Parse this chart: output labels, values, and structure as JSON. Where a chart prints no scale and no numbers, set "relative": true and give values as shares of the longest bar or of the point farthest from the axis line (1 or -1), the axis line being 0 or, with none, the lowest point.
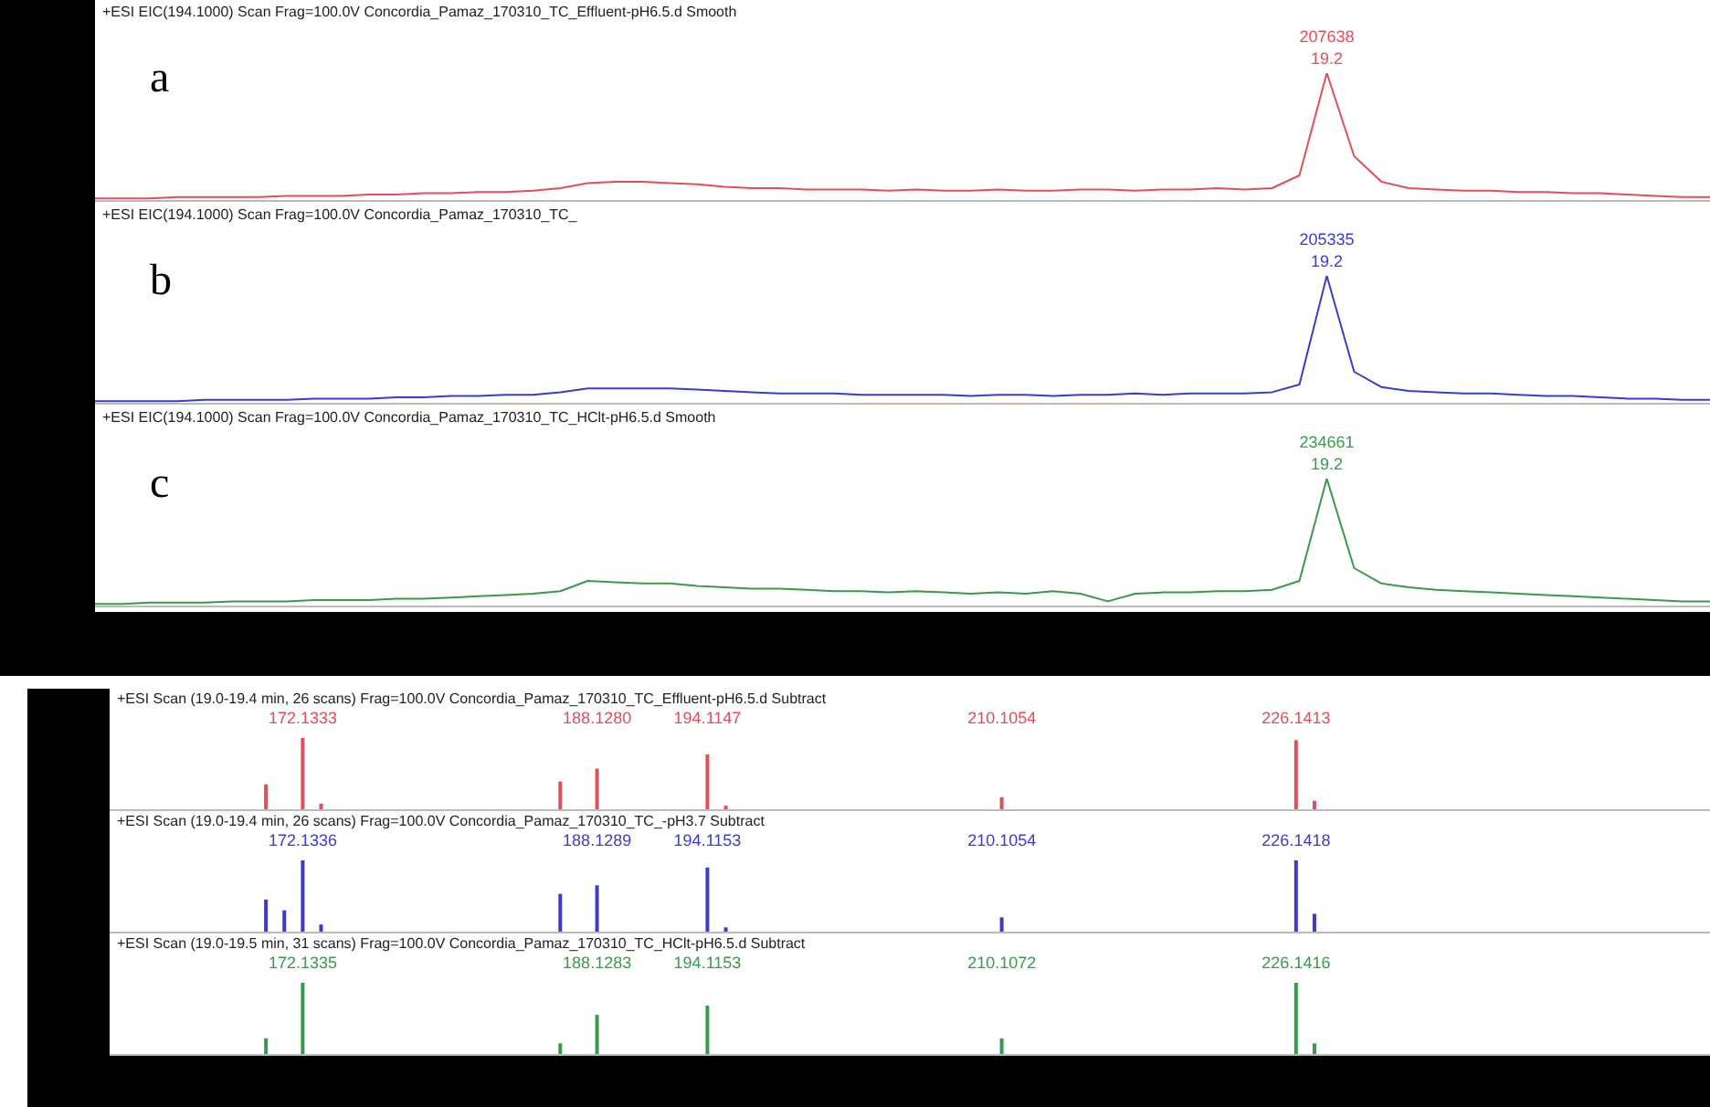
{
  "chart_data": [
    {
      "type": "line",
      "title": "+ESI EIC(194.1000) Scan Frag=100.0V Concordia_Pamaz_170310_TC_Effluent-pH6.5.d  Smooth",
      "relative": true,
      "tick_labels": false,
      "color": "#e0505a",
      "categories": [
        null,
        null,
        null,
        null,
        null,
        null,
        null,
        null,
        null,
        null,
        null,
        null,
        null,
        null,
        null,
        null,
        null,
        null,
        null,
        null,
        null,
        null,
        null,
        null,
        null,
        null,
        null,
        null,
        null,
        null,
        null,
        null,
        null,
        null,
        null,
        null,
        null,
        null,
        null,
        null,
        null,
        null,
        null,
        null,
        null,
        null,
        null,
        null,
        null,
        null,
        null,
        null,
        null,
        null,
        null,
        null,
        null,
        null,
        null,
        null
      ],
      "values": [
        0.02,
        0.02,
        0.02,
        0.03,
        0.03,
        0.03,
        0.03,
        0.04,
        0.04,
        0.04,
        0.05,
        0.05,
        0.06,
        0.06,
        0.07,
        0.07,
        0.08,
        0.1,
        0.14,
        0.15,
        0.15,
        0.14,
        0.13,
        0.11,
        0.1,
        0.1,
        0.09,
        0.09,
        0.09,
        0.08,
        0.09,
        0.08,
        0.08,
        0.09,
        0.08,
        0.08,
        0.09,
        0.09,
        0.08,
        0.09,
        0.09,
        0.1,
        0.09,
        0.1,
        0.2,
        1,
        0.35,
        0.15,
        0.1,
        0.09,
        0.08,
        0.08,
        0.07,
        0.07,
        0.06,
        0.06,
        0.05,
        0.04,
        0.03,
        0.03
      ],
      "annotations": [
        "a",
        {
          "text": "207638",
          "y": 1
        },
        {
          "text": "19.2",
          "y": 1
        }
      ]
    },
    {
      "type": "line",
      "title": "+ESI EIC(194.1000) Scan Frag=100.0V Concordia_Pamaz_170310_TC_",
      "relative": true,
      "tick_labels": false,
      "color": "#3c3cc8",
      "categories": [
        null,
        null,
        null,
        null,
        null,
        null,
        null,
        null,
        null,
        null,
        null,
        null,
        null,
        null,
        null,
        null,
        null,
        null,
        null,
        null,
        null,
        null,
        null,
        null,
        null,
        null,
        null,
        null,
        null,
        null,
        null,
        null,
        null,
        null,
        null,
        null,
        null,
        null,
        null,
        null,
        null,
        null,
        null,
        null,
        null,
        null,
        null,
        null,
        null,
        null,
        null,
        null,
        null,
        null,
        null,
        null,
        null,
        null,
        null,
        null
      ],
      "values": [
        0.02,
        0.02,
        0.02,
        0.02,
        0.03,
        0.03,
        0.03,
        0.03,
        0.04,
        0.04,
        0.04,
        0.05,
        0.05,
        0.06,
        0.06,
        0.07,
        0.07,
        0.09,
        0.12,
        0.12,
        0.12,
        0.12,
        0.11,
        0.1,
        0.09,
        0.08,
        0.08,
        0.08,
        0.07,
        0.07,
        0.07,
        0.07,
        0.06,
        0.07,
        0.07,
        0.06,
        0.07,
        0.07,
        0.08,
        0.07,
        0.08,
        0.08,
        0.08,
        0.09,
        0.15,
        1,
        0.25,
        0.13,
        0.1,
        0.09,
        0.08,
        0.08,
        0.07,
        0.06,
        0.06,
        0.05,
        0.04,
        0.04,
        0.03,
        0.03
      ],
      "annotations": [
        "b",
        {
          "text": "205335",
          "y": 1
        },
        {
          "text": "19.2",
          "y": 1
        }
      ]
    },
    {
      "type": "line",
      "title": "+ESI EIC(194.1000) Scan Frag=100.0V Concordia_Pamaz_170310_TC_HClt-pH6.5.d  Smooth",
      "relative": true,
      "tick_labels": false,
      "color": "#3a9a4c",
      "categories": [
        null,
        null,
        null,
        null,
        null,
        null,
        null,
        null,
        null,
        null,
        null,
        null,
        null,
        null,
        null,
        null,
        null,
        null,
        null,
        null,
        null,
        null,
        null,
        null,
        null,
        null,
        null,
        null,
        null,
        null,
        null,
        null,
        null,
        null,
        null,
        null,
        null,
        null,
        null,
        null,
        null,
        null,
        null,
        null,
        null,
        null,
        null,
        null,
        null,
        null,
        null,
        null,
        null,
        null,
        null,
        null,
        null,
        null,
        null,
        null
      ],
      "values": [
        0.02,
        0.02,
        0.03,
        0.03,
        0.03,
        0.04,
        0.04,
        0.04,
        0.05,
        0.05,
        0.05,
        0.06,
        0.06,
        0.07,
        0.08,
        0.09,
        0.1,
        0.12,
        0.2,
        0.19,
        0.18,
        0.18,
        0.16,
        0.15,
        0.14,
        0.14,
        0.13,
        0.12,
        0.12,
        0.11,
        0.12,
        0.11,
        0.1,
        0.11,
        0.1,
        0.12,
        0.1,
        0.04,
        0.1,
        0.11,
        0.11,
        0.12,
        0.12,
        0.13,
        0.2,
        1,
        0.3,
        0.18,
        0.15,
        0.13,
        0.12,
        0.11,
        0.1,
        0.09,
        0.08,
        0.07,
        0.06,
        0.05,
        0.04,
        0.04
      ],
      "annotations": [
        "c",
        {
          "text": "234661",
          "y": 1
        },
        {
          "text": "19.2",
          "y": 1
        }
      ]
    },
    {
      "type": "bar",
      "title": "+ESI Scan (19.0-19.4 min, 26 scans) Frag=100.0V Concordia_Pamaz_170310_TC_Effluent-pH6.5.d  Subtract",
      "relative": true,
      "tick_labels": "x",
      "color": "#e0505a",
      "categories": [
        null,
        null,
        null,
        null,
        null,
        null,
        null,
        null,
        null,
        null,
        "172.1333",
        null,
        null,
        null,
        null,
        null,
        null,
        null,
        null,
        null,
        null,
        null,
        null,
        null,
        null,
        null,
        "188.1280",
        null,
        null,
        null,
        null,
        null,
        "194.1147",
        null,
        null,
        null,
        null,
        null,
        null,
        null,
        null,
        null,
        null,
        null,
        null,
        null,
        null,
        null,
        "210.1054",
        null,
        null,
        null,
        null,
        null,
        null,
        null,
        null,
        null,
        null,
        null,
        null,
        null,
        null,
        null,
        "226.1413",
        null,
        null,
        null,
        null,
        null,
        null,
        null,
        null,
        null,
        null,
        null,
        null,
        null,
        null,
        null,
        null,
        null,
        null,
        null,
        null,
        null,
        null
      ],
      "values": [
        null,
        null,
        null,
        null,
        null,
        null,
        null,
        null,
        0.35,
        null,
        1,
        0.08,
        null,
        null,
        null,
        null,
        null,
        null,
        null,
        null,
        null,
        null,
        null,
        null,
        0.39,
        null,
        0.57,
        null,
        null,
        null,
        null,
        null,
        0.77,
        0.05,
        null,
        null,
        null,
        null,
        null,
        null,
        null,
        null,
        null,
        null,
        null,
        null,
        null,
        null,
        0.17,
        null,
        null,
        null,
        null,
        null,
        null,
        null,
        null,
        null,
        null,
        null,
        null,
        null,
        null,
        null,
        0.97,
        0.12,
        null,
        null,
        null,
        null,
        null,
        null,
        null,
        null,
        null,
        null,
        null,
        null,
        null,
        null,
        null,
        null,
        null,
        null,
        null,
        null,
        null
      ]
    },
    {
      "type": "bar",
      "title": "+ESI Scan (19.0-19.4 min, 26 scans) Frag=100.0V Concordia_Pamaz_170310_TC_-pH3.7  Subtract",
      "relative": true,
      "tick_labels": "x",
      "color": "#3c3cc8",
      "categories": [
        null,
        null,
        null,
        null,
        null,
        null,
        null,
        null,
        null,
        null,
        "172.1336",
        null,
        null,
        null,
        null,
        null,
        null,
        null,
        null,
        null,
        null,
        null,
        null,
        null,
        null,
        null,
        "188.1289",
        null,
        null,
        null,
        null,
        null,
        "194.1153",
        null,
        null,
        null,
        null,
        null,
        null,
        null,
        null,
        null,
        null,
        null,
        null,
        null,
        null,
        null,
        "210.1054",
        null,
        null,
        null,
        null,
        null,
        null,
        null,
        null,
        null,
        null,
        null,
        null,
        null,
        null,
        null,
        "226.1418",
        null,
        null,
        null,
        null,
        null,
        null,
        null,
        null,
        null,
        null,
        null,
        null,
        null,
        null,
        null,
        null,
        null,
        null,
        null,
        null,
        null,
        null
      ],
      "values": [
        null,
        null,
        null,
        null,
        null,
        null,
        null,
        null,
        0.45,
        0.3,
        1,
        0.1,
        null,
        null,
        null,
        null,
        null,
        null,
        null,
        null,
        null,
        null,
        null,
        null,
        0.53,
        null,
        0.65,
        null,
        null,
        null,
        null,
        null,
        0.9,
        0.06,
        null,
        null,
        null,
        null,
        null,
        null,
        null,
        null,
        null,
        null,
        null,
        null,
        null,
        null,
        0.2,
        null,
        null,
        null,
        null,
        null,
        null,
        null,
        null,
        null,
        null,
        null,
        null,
        null,
        null,
        null,
        1,
        0.25,
        null,
        null,
        null,
        null,
        null,
        null,
        null,
        null,
        null,
        null,
        null,
        null,
        null,
        null,
        null,
        null,
        null,
        null,
        null,
        null,
        null
      ]
    },
    {
      "type": "bar",
      "title": "+ESI Scan (19.0-19.5 min, 31 scans) Frag=100.0V Concordia_Pamaz_170310_TC_HClt-pH6.5.d  Subtract",
      "relative": true,
      "tick_labels": "x",
      "color": "#3a9a4c",
      "categories": [
        null,
        null,
        null,
        null,
        null,
        null,
        null,
        null,
        null,
        null,
        "172.1335",
        null,
        null,
        null,
        null,
        null,
        null,
        null,
        null,
        null,
        null,
        null,
        null,
        null,
        null,
        null,
        "188.1283",
        null,
        null,
        null,
        null,
        null,
        "194.1153",
        null,
        null,
        null,
        null,
        null,
        null,
        null,
        null,
        null,
        null,
        null,
        null,
        null,
        null,
        null,
        "210.1072",
        null,
        null,
        null,
        null,
        null,
        null,
        null,
        null,
        null,
        null,
        null,
        null,
        null,
        null,
        null,
        "226.1416",
        null,
        null,
        null,
        null,
        null,
        null,
        null,
        null,
        null,
        null,
        null,
        null,
        null,
        null,
        null,
        null,
        null,
        null,
        null,
        null,
        null,
        null
      ],
      "values": [
        null,
        null,
        null,
        null,
        null,
        null,
        null,
        null,
        0.22,
        null,
        1,
        null,
        null,
        null,
        null,
        null,
        null,
        null,
        null,
        null,
        null,
        null,
        null,
        null,
        0.15,
        null,
        0.55,
        null,
        null,
        null,
        null,
        null,
        0.68,
        null,
        null,
        null,
        null,
        null,
        null,
        null,
        null,
        null,
        null,
        null,
        null,
        null,
        null,
        null,
        0.22,
        null,
        null,
        null,
        null,
        null,
        null,
        null,
        null,
        null,
        null,
        null,
        null,
        null,
        null,
        null,
        1,
        0.15,
        null,
        null,
        null,
        null,
        null,
        null,
        null,
        null,
        null,
        null,
        null,
        null,
        null,
        null,
        null,
        null,
        null,
        null,
        null,
        null,
        null
      ]
    }
  ]
}
